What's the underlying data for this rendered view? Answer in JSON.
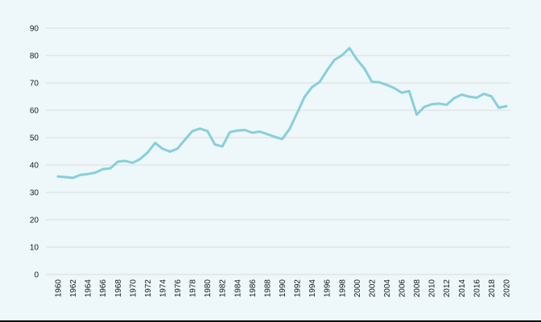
{
  "window": {
    "background": "#eef7f9",
    "bottom_edge_color": "#0a0a0a"
  },
  "chart_data": {
    "type": "line",
    "title": "",
    "xlabel": "",
    "ylabel": "",
    "x": [
      1960,
      1961,
      1962,
      1963,
      1964,
      1965,
      1966,
      1967,
      1968,
      1969,
      1970,
      1971,
      1972,
      1973,
      1974,
      1975,
      1976,
      1977,
      1978,
      1979,
      1980,
      1981,
      1982,
      1983,
      1984,
      1985,
      1986,
      1987,
      1988,
      1989,
      1990,
      1991,
      1992,
      1993,
      1994,
      1995,
      1996,
      1997,
      1998,
      1999,
      2000,
      2001,
      2002,
      2003,
      2004,
      2005,
      2006,
      2007,
      2008,
      2009,
      2010,
      2011,
      2012,
      2013,
      2014,
      2015,
      2016,
      2017,
      2018,
      2019,
      2020
    ],
    "values": [
      35.8,
      35.6,
      35.3,
      36.4,
      36.7,
      37.2,
      38.5,
      38.8,
      41.2,
      41.5,
      40.8,
      42.2,
      44.6,
      48.1,
      45.9,
      44.9,
      46.0,
      49.3,
      52.4,
      53.3,
      52.4,
      47.5,
      46.8,
      52.0,
      52.6,
      52.8,
      51.8,
      52.2,
      51.3,
      50.3,
      49.5,
      53.2,
      59.0,
      64.9,
      68.5,
      70.3,
      74.6,
      78.4,
      80.1,
      82.7,
      78.6,
      75.3,
      70.4,
      70.2,
      69.3,
      68.1,
      66.4,
      67.0,
      58.4,
      61.2,
      62.2,
      62.4,
      62.0,
      64.4,
      65.7,
      65.0,
      64.6,
      66.0,
      65.1,
      60.9,
      61.5
    ],
    "ylim": [
      0,
      90
    ],
    "yticks": [
      0,
      10,
      20,
      30,
      40,
      50,
      60,
      70,
      80,
      90
    ],
    "xticks": [
      1960,
      1962,
      1964,
      1966,
      1968,
      1970,
      1972,
      1974,
      1976,
      1978,
      1980,
      1982,
      1984,
      1986,
      1988,
      1990,
      1992,
      1994,
      1996,
      1998,
      2000,
      2002,
      2004,
      2006,
      2008,
      2010,
      2012,
      2014,
      2016,
      2018,
      2020
    ],
    "xtick_rotation_deg": -90,
    "grid": true,
    "legend": false,
    "line_color": "#86cfdc",
    "grid_color": "#dcdcdc",
    "tick_label_color": "#1a1a1a",
    "line_width": 3
  }
}
